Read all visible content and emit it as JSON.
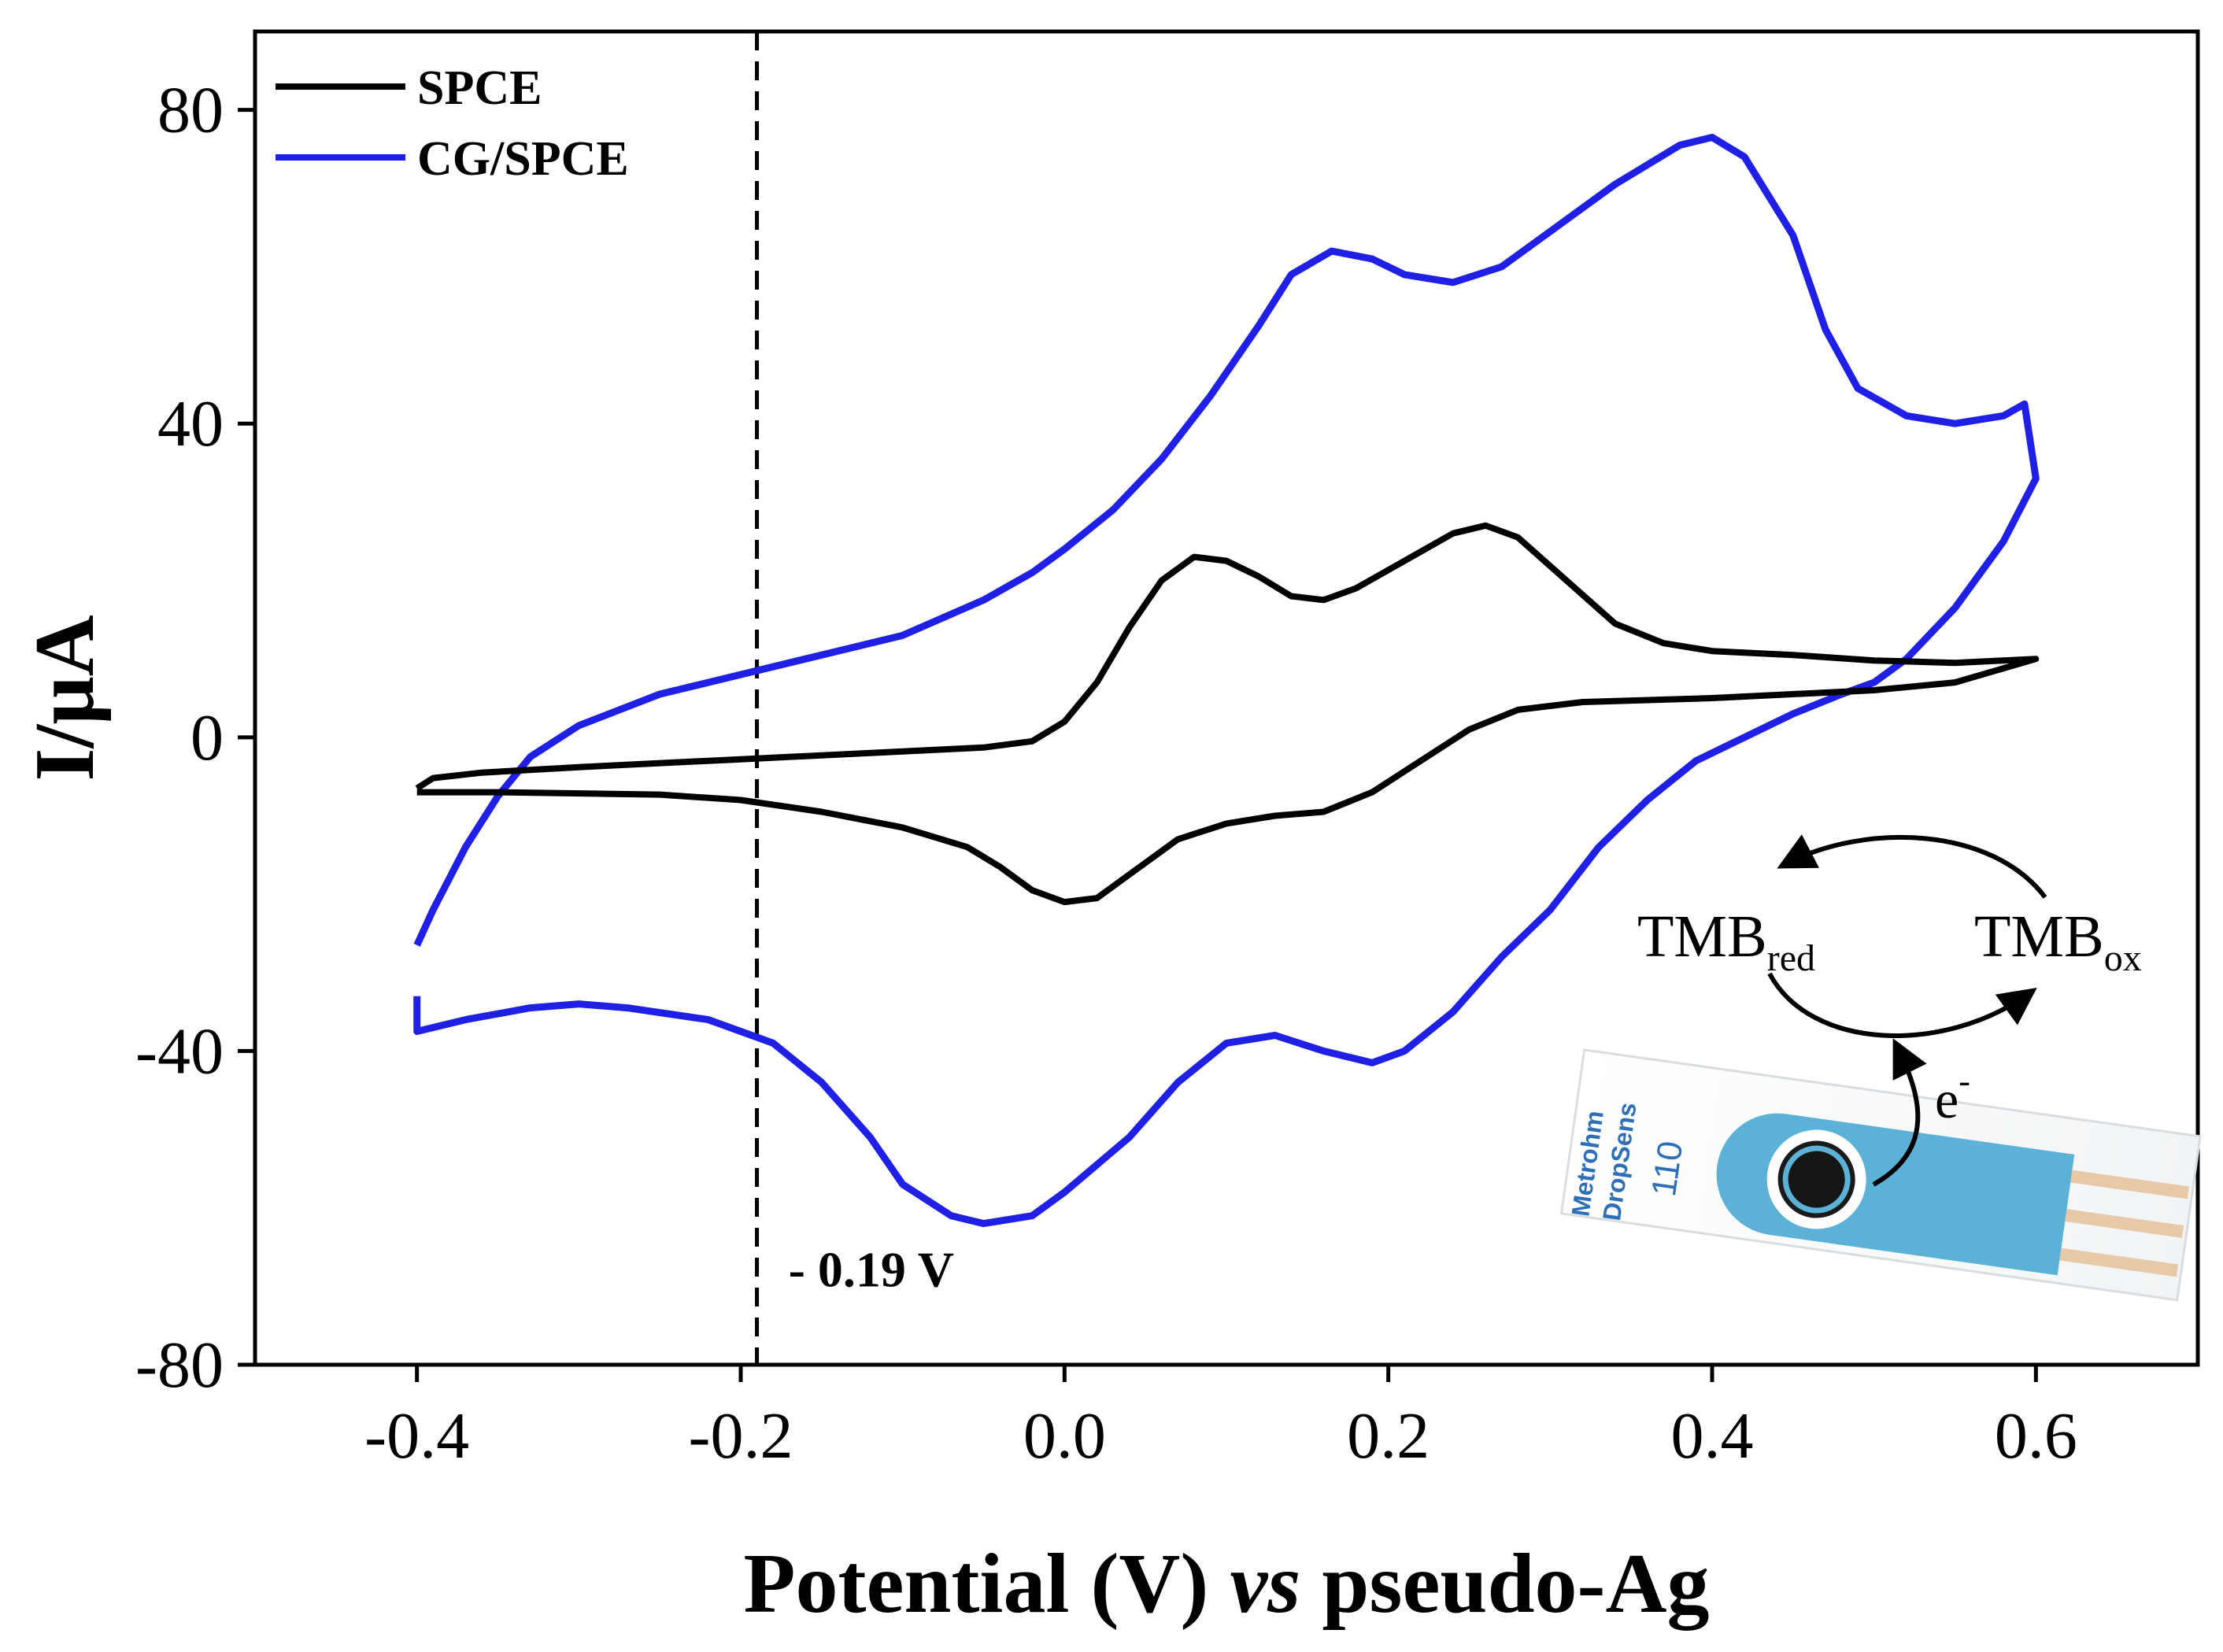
{
  "chart_data": {
    "type": "line",
    "title": "",
    "xlabel": {
      "main": "Potential (V) ",
      "italic": "vs",
      "tail": " pseudo-Ag"
    },
    "ylabel": "I/μA",
    "xlim": [
      -0.5,
      0.7
    ],
    "ylim": [
      -80,
      90
    ],
    "x_ticks": [
      -0.4,
      -0.2,
      0.0,
      0.2,
      0.4,
      0.6
    ],
    "x_tick_labels": [
      "-0.4",
      "-0.2",
      "0.0",
      "0.2",
      "0.4",
      "0.6"
    ],
    "y_ticks": [
      80,
      40,
      0,
      -40,
      -80
    ],
    "y_tick_labels": [
      "80",
      "40",
      "0",
      "-40",
      "-80"
    ],
    "legend_position": "top-left",
    "series": [
      {
        "name": "SPCE",
        "color": "#000000",
        "points": [
          [
            -0.4,
            -7
          ],
          [
            -0.35,
            -7
          ],
          [
            -0.25,
            -7.3
          ],
          [
            -0.2,
            -8
          ],
          [
            -0.15,
            -9.5
          ],
          [
            -0.1,
            -11.5
          ],
          [
            -0.06,
            -14
          ],
          [
            -0.04,
            -16.5
          ],
          [
            -0.02,
            -19.5
          ],
          [
            0.0,
            -21
          ],
          [
            0.02,
            -20.5
          ],
          [
            0.04,
            -17.5
          ],
          [
            0.07,
            -13
          ],
          [
            0.1,
            -11
          ],
          [
            0.13,
            -10
          ],
          [
            0.16,
            -9.5
          ],
          [
            0.19,
            -7
          ],
          [
            0.22,
            -3
          ],
          [
            0.25,
            1
          ],
          [
            0.28,
            3.5
          ],
          [
            0.32,
            4.5
          ],
          [
            0.4,
            5
          ],
          [
            0.5,
            6
          ],
          [
            0.55,
            7
          ],
          [
            0.6,
            10
          ],
          [
            0.55,
            9.5
          ],
          [
            0.5,
            9.8
          ],
          [
            0.45,
            10.5
          ],
          [
            0.4,
            11
          ],
          [
            0.37,
            12
          ],
          [
            0.34,
            14.5
          ],
          [
            0.31,
            20
          ],
          [
            0.28,
            25.5
          ],
          [
            0.26,
            27
          ],
          [
            0.24,
            26
          ],
          [
            0.21,
            22.5
          ],
          [
            0.18,
            19
          ],
          [
            0.16,
            17.5
          ],
          [
            0.14,
            18
          ],
          [
            0.12,
            20.5
          ],
          [
            0.1,
            22.5
          ],
          [
            0.08,
            23
          ],
          [
            0.06,
            20
          ],
          [
            0.04,
            14
          ],
          [
            0.02,
            7
          ],
          [
            0.0,
            2
          ],
          [
            -0.02,
            -0.5
          ],
          [
            -0.05,
            -1.3
          ],
          [
            -0.1,
            -1.8
          ],
          [
            -0.2,
            -2.8
          ],
          [
            -0.3,
            -3.8
          ],
          [
            -0.36,
            -4.5
          ],
          [
            -0.39,
            -5.2
          ],
          [
            -0.4,
            -6.5
          ]
        ]
      },
      {
        "name": "CG/SPCE",
        "color": "#1f1fe6",
        "points": [
          [
            -0.4,
            -26.5
          ],
          [
            -0.39,
            -22
          ],
          [
            -0.37,
            -14
          ],
          [
            -0.35,
            -7.5
          ],
          [
            -0.33,
            -2.5
          ],
          [
            -0.3,
            1.5
          ],
          [
            -0.25,
            5.5
          ],
          [
            -0.2,
            8
          ],
          [
            -0.15,
            10.5
          ],
          [
            -0.1,
            13
          ],
          [
            -0.05,
            17.5
          ],
          [
            -0.02,
            21
          ],
          [
            0.0,
            24
          ],
          [
            0.03,
            29
          ],
          [
            0.06,
            35.5
          ],
          [
            0.09,
            43.5
          ],
          [
            0.12,
            52.5
          ],
          [
            0.14,
            59
          ],
          [
            0.165,
            62
          ],
          [
            0.19,
            61
          ],
          [
            0.21,
            59
          ],
          [
            0.24,
            58
          ],
          [
            0.27,
            60
          ],
          [
            0.3,
            64.5
          ],
          [
            0.34,
            70.5
          ],
          [
            0.38,
            75.5
          ],
          [
            0.4,
            76.5
          ],
          [
            0.42,
            74
          ],
          [
            0.45,
            64
          ],
          [
            0.47,
            52
          ],
          [
            0.49,
            44.5
          ],
          [
            0.52,
            41
          ],
          [
            0.55,
            40
          ],
          [
            0.58,
            41
          ],
          [
            0.593,
            42.5
          ],
          [
            0.6,
            33
          ],
          [
            0.58,
            25
          ],
          [
            0.55,
            16.5
          ],
          [
            0.52,
            10
          ],
          [
            0.5,
            7
          ],
          [
            0.48,
            5.5
          ],
          [
            0.45,
            3
          ],
          [
            0.42,
            0
          ],
          [
            0.39,
            -3
          ],
          [
            0.36,
            -8
          ],
          [
            0.33,
            -14
          ],
          [
            0.3,
            -22
          ],
          [
            0.27,
            -28
          ],
          [
            0.24,
            -35
          ],
          [
            0.21,
            -40
          ],
          [
            0.19,
            -41.5
          ],
          [
            0.16,
            -40
          ],
          [
            0.13,
            -38
          ],
          [
            0.1,
            -39
          ],
          [
            0.07,
            -44
          ],
          [
            0.04,
            -51
          ],
          [
            0.0,
            -58
          ],
          [
            -0.02,
            -61
          ],
          [
            -0.05,
            -62
          ],
          [
            -0.07,
            -61
          ],
          [
            -0.1,
            -57
          ],
          [
            -0.12,
            -51
          ],
          [
            -0.15,
            -44
          ],
          [
            -0.18,
            -39
          ],
          [
            -0.22,
            -36
          ],
          [
            -0.27,
            -34.5
          ],
          [
            -0.3,
            -34
          ],
          [
            -0.33,
            -34.5
          ],
          [
            -0.37,
            -36
          ],
          [
            -0.4,
            -37.5
          ],
          [
            -0.4,
            -33
          ]
        ]
      }
    ],
    "reference_line": {
      "x": -0.19,
      "label": "- 0.19 V",
      "style": "dashed"
    },
    "inset_scheme": {
      "reduced": "TMB",
      "reduced_sub": "red",
      "oxidized": "TMB",
      "oxidized_sub": "ox",
      "electron": "e",
      "electron_sup": "-",
      "strip_brand": "Metrohm",
      "strip_sub_brand": "DropSens",
      "strip_model": "110"
    }
  }
}
